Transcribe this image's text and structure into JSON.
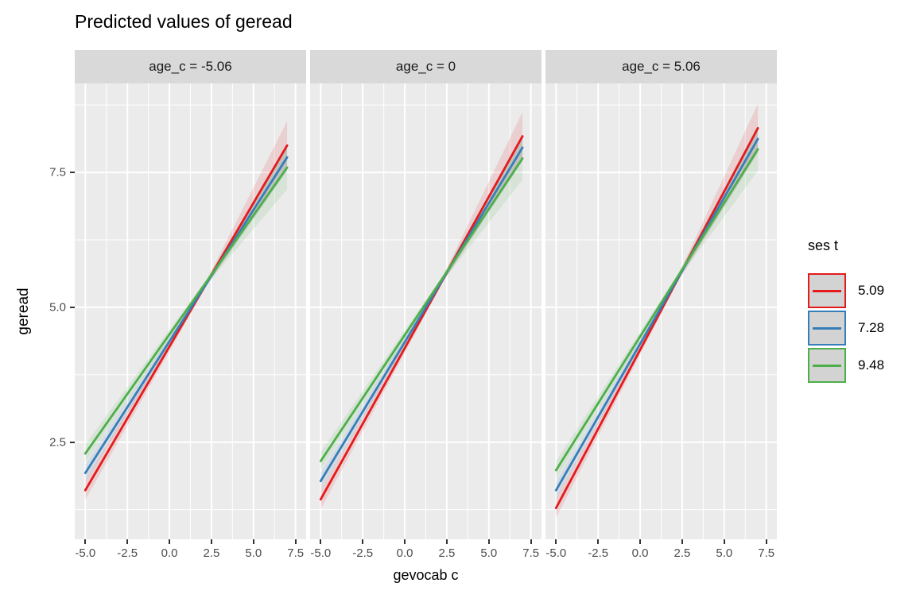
{
  "chart_data": {
    "type": "line",
    "title": "Predicted values of geread",
    "xlabel": "gevocab c",
    "ylabel": "geread",
    "x_range": [
      -5,
      7
    ],
    "xlim": [
      -5.63,
      8.13
    ],
    "ylim": [
      0.7,
      9.15
    ],
    "x_ticks": [
      -5.0,
      -2.5,
      0.0,
      2.5,
      5.0,
      7.5
    ],
    "x_tick_labels": [
      "-5.0",
      "-2.5",
      "0.0",
      "2.5",
      "5.0",
      "7.5"
    ],
    "y_ticks": [
      2.5,
      5.0,
      7.5
    ],
    "y_tick_labels": [
      "2.5",
      "5.0",
      "7.5"
    ],
    "grid": {
      "on": true,
      "minor_x": [
        -3.75,
        -1.25,
        1.25,
        3.75,
        6.25
      ],
      "minor_y": [
        1.25,
        3.75,
        6.25,
        8.75
      ]
    },
    "ribbon_x": [
      -5,
      2.2,
      7
    ],
    "facets": [
      {
        "label": "age_c = -5.06",
        "series": [
          {
            "name": "5.09",
            "color": "#E41A1C",
            "y": [
              1.61,
              8.0
            ],
            "ribbon": [
              0.18,
              0.05,
              0.45
            ]
          },
          {
            "name": "7.28",
            "color": "#377EB8",
            "y": [
              1.93,
              7.78
            ],
            "ribbon": [
              0.16,
              0.05,
              0.25
            ]
          },
          {
            "name": "9.48",
            "color": "#4DAF4A",
            "y": [
              2.29,
              7.59
            ],
            "ribbon": [
              0.17,
              0.05,
              0.4
            ]
          }
        ]
      },
      {
        "label": "age_c = 0",
        "series": [
          {
            "name": "5.09",
            "color": "#E41A1C",
            "y": [
              1.44,
              8.17
            ],
            "ribbon": [
              0.18,
              0.05,
              0.45
            ]
          },
          {
            "name": "7.28",
            "color": "#377EB8",
            "y": [
              1.78,
              7.96
            ],
            "ribbon": [
              0.16,
              0.05,
              0.25
            ]
          },
          {
            "name": "9.48",
            "color": "#4DAF4A",
            "y": [
              2.15,
              7.76
            ],
            "ribbon": [
              0.17,
              0.05,
              0.4
            ]
          }
        ]
      },
      {
        "label": "age_c = 5.06",
        "series": [
          {
            "name": "5.09",
            "color": "#E41A1C",
            "y": [
              1.28,
              8.32
            ],
            "ribbon": [
              0.18,
              0.05,
              0.45
            ]
          },
          {
            "name": "7.28",
            "color": "#377EB8",
            "y": [
              1.61,
              8.12
            ],
            "ribbon": [
              0.16,
              0.05,
              0.25
            ]
          },
          {
            "name": "9.48",
            "color": "#4DAF4A",
            "y": [
              1.98,
              7.93
            ],
            "ribbon": [
              0.17,
              0.05,
              0.4
            ]
          }
        ]
      }
    ],
    "legend": {
      "title": "ses t",
      "position": "right",
      "entries": [
        {
          "label": "5.09",
          "color": "#E41A1C"
        },
        {
          "label": "7.28",
          "color": "#377EB8"
        },
        {
          "label": "9.48",
          "color": "#4DAF4A"
        }
      ]
    },
    "theme": {
      "panel_bg": "#EBEBEB",
      "strip_bg": "#D9D9D9",
      "grid_color": "#FFFFFF",
      "axis_text_color": "#4D4D4D",
      "text_color": "#000000",
      "legend_key_bg": "#D3D3D3",
      "ribbon_opacity": 0.13,
      "line_width": 2.8
    }
  }
}
